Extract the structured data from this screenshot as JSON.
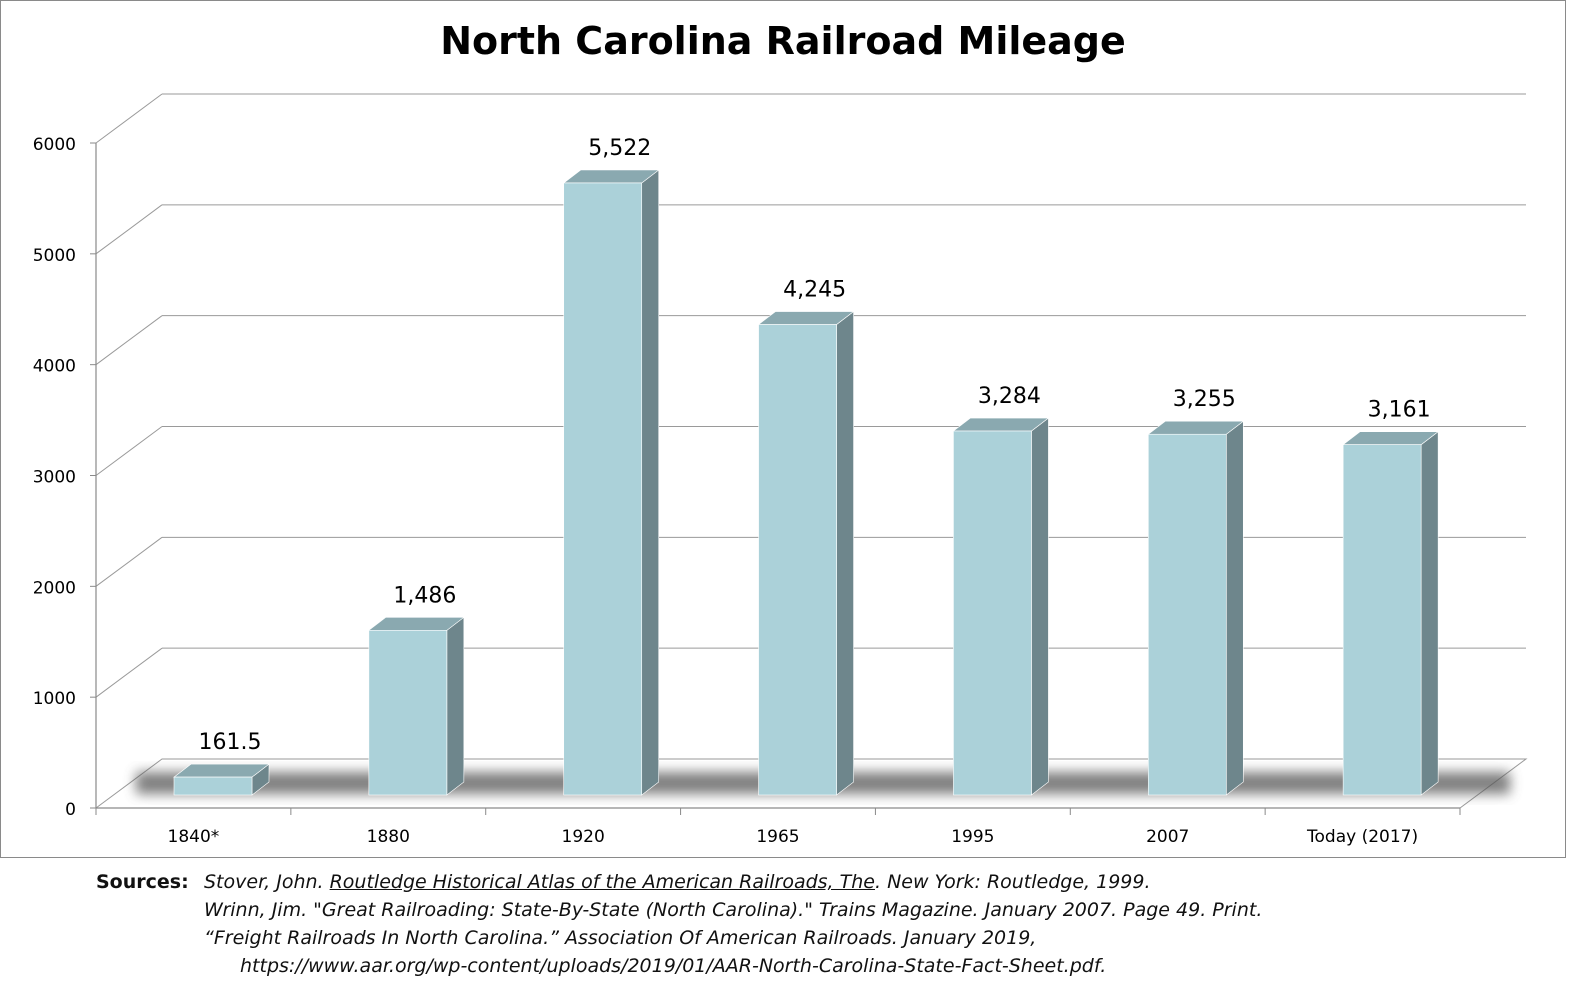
{
  "chart_data": {
    "type": "bar",
    "title": "North Carolina Railroad Mileage",
    "categories": [
      "1840*",
      "1880",
      "1920",
      "1965",
      "1995",
      "2007",
      "Today  (2017)"
    ],
    "values": [
      161.5,
      1486,
      5522,
      4245,
      3284,
      3255,
      3161
    ],
    "data_labels": [
      "161.5",
      "1,486",
      "5,522",
      "4,245",
      "3,284",
      "3,255",
      "3,161"
    ],
    "y_ticks": [
      "0",
      "1000",
      "2000",
      "3000",
      "4000",
      "5000",
      "6000"
    ],
    "ylim": [
      0,
      6000
    ],
    "xlabel": "",
    "ylabel": "",
    "grid": true,
    "style": "3d-column",
    "colors": {
      "front": "#abd1d9",
      "top": "#8aa9b0",
      "side": "#6e868c",
      "grid": "#9a9a9a",
      "axis": "#8a8a8a"
    }
  },
  "sources": {
    "label": "Sources:",
    "line1_pre": "Stover, John. ",
    "line1_title": "Routledge Historical Atlas of the American Railroads, The",
    "line1_post": ". New York: Routledge, 1999.",
    "line2": "Wrinn, Jim. \"Great Railroading: State-By-State (North Carolina).\" Trains Magazine. January 2007. Page 49. Print.",
    "line3": "“Freight Railroads In North Carolina.” Association Of American Railroads. January 2019,",
    "line4": "https://www.aar.org/wp-content/uploads/2019/01/AAR-North-Carolina-State-Fact-Sheet.pdf."
  }
}
